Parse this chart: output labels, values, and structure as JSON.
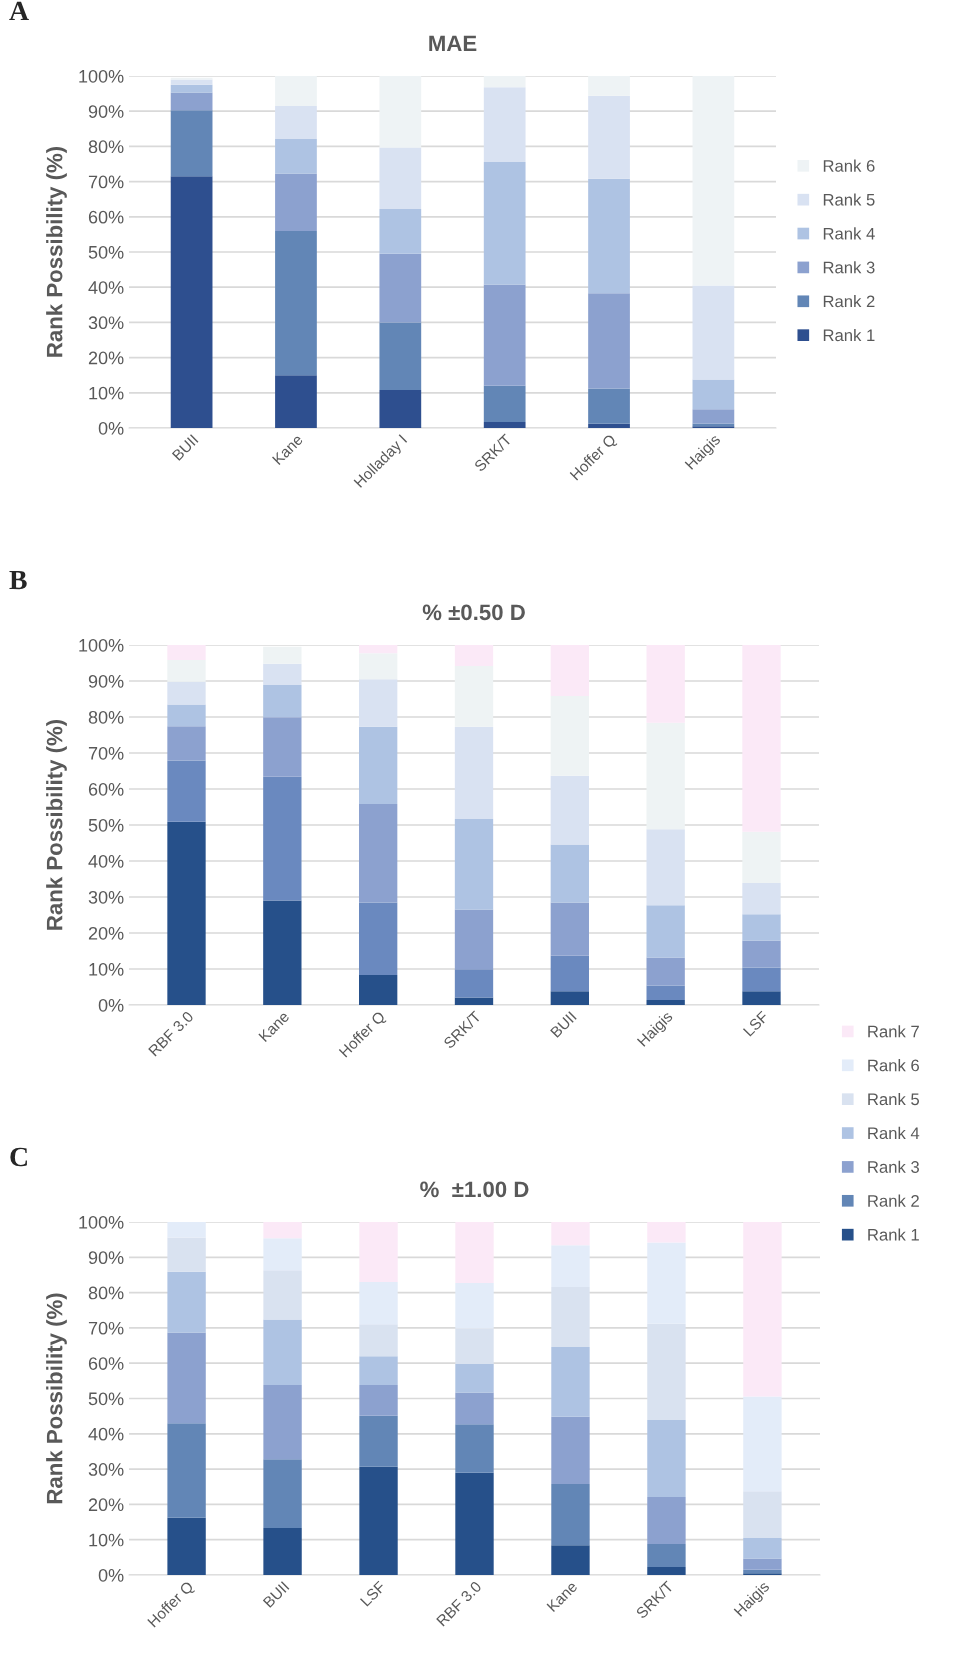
{
  "chart_data": [
    {
      "type": "bar",
      "stacked": true,
      "title": "MAE",
      "ylabel": "Rank Possibility (%)",
      "annotations": [
        "A"
      ],
      "legend": "right",
      "grid": "y",
      "categories": [
        "BUII",
        "Kane",
        "Holladay I",
        "SRK/T",
        "Hoffer Q",
        "Haigis"
      ],
      "ylim": [
        0,
        100
      ],
      "yticks": [
        {
          "value": 0,
          "label": "0%"
        },
        {
          "value": 10,
          "label": "10%"
        },
        {
          "value": 20,
          "label": "20%"
        },
        {
          "value": 30,
          "label": "30%"
        },
        {
          "value": 40,
          "label": "40%"
        },
        {
          "value": 50,
          "label": "50%"
        },
        {
          "value": 60,
          "label": "60%"
        },
        {
          "value": 70,
          "label": "70%"
        },
        {
          "value": 80,
          "label": "80%"
        },
        {
          "value": 90,
          "label": "90%"
        },
        {
          "value": 100,
          "label": "100%"
        }
      ],
      "series": [
        {
          "name": "Rank 1",
          "color": "#2e4f8f",
          "values": [
            71.5,
            15,
            10.8,
            1.7,
            1.2,
            0.5
          ]
        },
        {
          "name": "Rank 2",
          "color": "#6286b6",
          "values": [
            18.8,
            41,
            19.2,
            10.3,
            10,
            0.8
          ]
        },
        {
          "name": "Rank 3",
          "color": "#8ca1cf",
          "values": [
            5,
            16.3,
            19.5,
            28.8,
            27.1,
            4
          ]
        },
        {
          "name": "Rank 4",
          "color": "#aec3e3",
          "values": [
            2.2,
            9.8,
            12.7,
            34.8,
            32.5,
            8.5
          ]
        },
        {
          "name": "Rank 5",
          "color": "#d9e2f2",
          "values": [
            1.5,
            9.4,
            17.5,
            21.2,
            23.6,
            26.7
          ]
        },
        {
          "name": "Rank 6",
          "color": "#eef3f5",
          "values": [
            0.5,
            8.5,
            20.3,
            3.2,
            5.6,
            59.5
          ]
        }
      ]
    },
    {
      "type": "bar",
      "stacked": true,
      "title": "% ±0.50 D",
      "ylabel": "Rank Possibility (%)",
      "annotations": [
        "B"
      ],
      "grid": "y",
      "categories": [
        "RBF 3.0",
        "Kane",
        "Hoffer Q",
        "SRK/T",
        "BUII",
        "Haigis",
        "LSF"
      ],
      "ylim": [
        0,
        100
      ],
      "yticks": [
        {
          "value": 0,
          "label": "0%"
        },
        {
          "value": 10,
          "label": "10%"
        },
        {
          "value": 20,
          "label": "20%"
        },
        {
          "value": 30,
          "label": "30%"
        },
        {
          "value": 40,
          "label": "40%"
        },
        {
          "value": 50,
          "label": "50%"
        },
        {
          "value": 60,
          "label": "60%"
        },
        {
          "value": 70,
          "label": "70%"
        },
        {
          "value": 80,
          "label": "80%"
        },
        {
          "value": 90,
          "label": "90%"
        },
        {
          "value": 100,
          "label": "100%"
        }
      ],
      "series": [
        {
          "color": "#26508a",
          "values": [
            50.9,
            29,
            8.3,
            2.1,
            3.8,
            1.4,
            3.8
          ]
        },
        {
          "color": "#6a89bf",
          "values": [
            17,
            34.4,
            20.2,
            7.8,
            9.9,
            4,
            6.6
          ]
        },
        {
          "color": "#8ca1cf",
          "values": [
            9.5,
            16.5,
            27.3,
            16.6,
            14.8,
            7.8,
            7.5
          ]
        },
        {
          "color": "#aec3e3",
          "values": [
            6.1,
            9,
            21.5,
            25.2,
            16.1,
            14.5,
            7.3
          ]
        },
        {
          "color": "#d9e2f2",
          "values": [
            6.3,
            5.9,
            13.2,
            25.6,
            19.1,
            21.1,
            8.7
          ]
        },
        {
          "color": "#eef3f4",
          "values": [
            6,
            4.7,
            7.2,
            16.9,
            22.1,
            29.6,
            14.2
          ]
        },
        {
          "color": "#fbe9f7",
          "values": [
            4.2,
            null,
            2.3,
            5.8,
            14.2,
            21.6,
            51.9
          ]
        }
      ]
    },
    {
      "type": "bar",
      "stacked": true,
      "title": "%  ±1.00 D",
      "ylabel": "Rank Possibility (%)",
      "annotations": [
        "C"
      ],
      "legend": "top right",
      "grid": "y",
      "categories": [
        "Hoffer Q",
        "BUII",
        "LSF",
        "RBF 3.0",
        "Kane",
        "SRK/T",
        "Haigis"
      ],
      "ylim": [
        0,
        100
      ],
      "yticks": [
        {
          "value": 0,
          "label": "0%"
        },
        {
          "value": 10,
          "label": "10%"
        },
        {
          "value": 20,
          "label": "20%"
        },
        {
          "value": 30,
          "label": "30%"
        },
        {
          "value": 40,
          "label": "40%"
        },
        {
          "value": 50,
          "label": "50%"
        },
        {
          "value": 60,
          "label": "60%"
        },
        {
          "value": 70,
          "label": "70%"
        },
        {
          "value": 80,
          "label": "80%"
        },
        {
          "value": 90,
          "label": "90%"
        },
        {
          "value": 100,
          "label": "100%"
        }
      ],
      "series": [
        {
          "name": "Rank 1",
          "color": "#26508a",
          "values": [
            16.2,
            13.3,
            30.7,
            29,
            8.4,
            2.3,
            0.5
          ]
        },
        {
          "name": "Rank 2",
          "color": "#6286b6",
          "values": [
            26.8,
            19.5,
            14.4,
            13.7,
            17.4,
            6.5,
            1
          ]
        },
        {
          "name": "Rank 3",
          "color": "#8ca1cf",
          "values": [
            25.7,
            21,
            8.7,
            9,
            19,
            13.3,
            3.2
          ]
        },
        {
          "name": "Rank 4",
          "color": "#aec3e3",
          "values": [
            17.2,
            18.6,
            8.2,
            8.1,
            19.8,
            21.8,
            5.8
          ]
        },
        {
          "name": "Rank 5",
          "color": "#d9e2f0",
          "values": [
            9.7,
            13.9,
            9,
            10,
            17,
            27.3,
            13.2
          ]
        },
        {
          "name": "Rank 6",
          "color": "#e3ecf9",
          "values": [
            4.4,
            9.1,
            12,
            12.9,
            11.8,
            23,
            26.9
          ]
        },
        {
          "name": "Rank 7",
          "color": "#fbe9f7",
          "values": [
            0,
            4.6,
            17,
            17.3,
            6.6,
            5.8,
            49.4
          ]
        }
      ]
    }
  ]
}
